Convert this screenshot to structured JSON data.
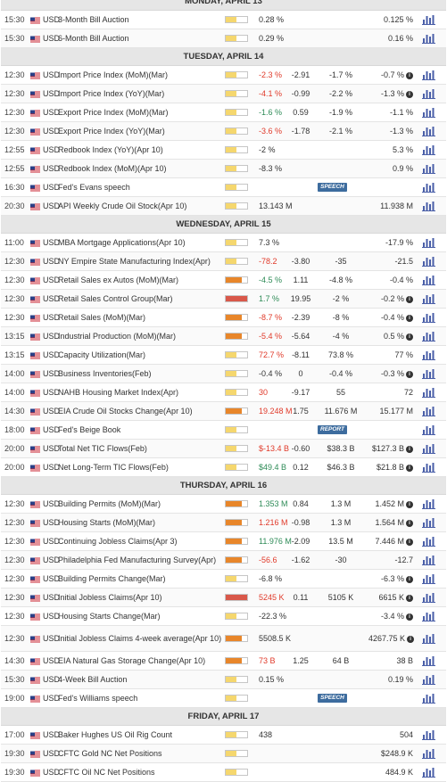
{
  "colors": {
    "low": "#f5d76e",
    "medium": "#e8862a",
    "high": "#d9584a",
    "positive": "#2e8b57",
    "negative": "#e03a2a",
    "badge": "#3d6c9e"
  },
  "icons": {
    "flag": "us-flag-icon",
    "chart": "bar-chart-icon",
    "info": "info-icon"
  },
  "days": [
    {
      "label": "MONDAY, APRIL 13",
      "events": [
        {
          "time": "15:30",
          "currency": "USD",
          "event": "3-Month Bill Auction",
          "impact": "low",
          "actual": "0.28 %",
          "tone": "neu",
          "deviation": "",
          "forecast": "",
          "previous": "0.125 %",
          "info": false,
          "badge": ""
        },
        {
          "time": "15:30",
          "currency": "USD",
          "event": "6-Month Bill Auction",
          "impact": "low",
          "actual": "0.29 %",
          "tone": "neu",
          "deviation": "",
          "forecast": "",
          "previous": "0.16 %",
          "info": false,
          "badge": ""
        }
      ]
    },
    {
      "label": "TUESDAY, APRIL 14",
      "events": [
        {
          "time": "12:30",
          "currency": "USD",
          "event": "Import Price Index (MoM)(Mar)",
          "impact": "low",
          "actual": "-2.3 %",
          "tone": "neg",
          "deviation": "-2.91",
          "forecast": "-1.7 %",
          "previous": "-0.7 %",
          "info": true,
          "badge": ""
        },
        {
          "time": "12:30",
          "currency": "USD",
          "event": "Import Price Index (YoY)(Mar)",
          "impact": "low",
          "actual": "-4.1 %",
          "tone": "neg",
          "deviation": "-0.99",
          "forecast": "-2.2 %",
          "previous": "-1.3 %",
          "info": true,
          "badge": ""
        },
        {
          "time": "12:30",
          "currency": "USD",
          "event": "Export Price Index (MoM)(Mar)",
          "impact": "low",
          "actual": "-1.6 %",
          "tone": "pos",
          "deviation": "0.59",
          "forecast": "-1.9 %",
          "previous": "-1.1 %",
          "info": false,
          "badge": ""
        },
        {
          "time": "12:30",
          "currency": "USD",
          "event": "Export Price Index (YoY)(Mar)",
          "impact": "low",
          "actual": "-3.6 %",
          "tone": "neg",
          "deviation": "-1.78",
          "forecast": "-2.1 %",
          "previous": "-1.3 %",
          "info": false,
          "badge": ""
        },
        {
          "time": "12:55",
          "currency": "USD",
          "event": "Redbook Index (YoY)(Apr 10)",
          "impact": "low",
          "actual": "-2 %",
          "tone": "neu",
          "deviation": "",
          "forecast": "",
          "previous": "5.3 %",
          "info": false,
          "badge": ""
        },
        {
          "time": "12:55",
          "currency": "USD",
          "event": "Redbook Index (MoM)(Apr 10)",
          "impact": "low",
          "actual": "-8.3 %",
          "tone": "neu",
          "deviation": "",
          "forecast": "",
          "previous": "0.9 %",
          "info": false,
          "badge": ""
        },
        {
          "time": "16:30",
          "currency": "USD",
          "event": "Fed's Evans speech",
          "impact": "low",
          "actual": "",
          "tone": "neu",
          "deviation": "",
          "forecast": "",
          "previous": "",
          "info": false,
          "badge": "SPEECH"
        },
        {
          "time": "20:30",
          "currency": "USD",
          "event": "API Weekly Crude Oil Stock(Apr 10)",
          "impact": "low",
          "actual": "13.143 M",
          "tone": "neu",
          "deviation": "",
          "forecast": "",
          "previous": "11.938 M",
          "info": false,
          "badge": ""
        }
      ]
    },
    {
      "label": "WEDNESDAY, APRIL 15",
      "events": [
        {
          "time": "11:00",
          "currency": "USD",
          "event": "MBA Mortgage Applications(Apr 10)",
          "impact": "low",
          "actual": "7.3 %",
          "tone": "neu",
          "deviation": "",
          "forecast": "",
          "previous": "-17.9 %",
          "info": false,
          "badge": ""
        },
        {
          "time": "12:30",
          "currency": "USD",
          "event": "NY Empire State Manufacturing Index(Apr)",
          "impact": "low",
          "actual": "-78.2",
          "tone": "neg",
          "deviation": "-3.80",
          "forecast": "-35",
          "previous": "-21.5",
          "info": false,
          "badge": ""
        },
        {
          "time": "12:30",
          "currency": "USD",
          "event": "Retail Sales ex Autos (MoM)(Mar)",
          "impact": "medium",
          "actual": "-4.5 %",
          "tone": "pos",
          "deviation": "1.11",
          "forecast": "-4.8 %",
          "previous": "-0.4 %",
          "info": false,
          "badge": ""
        },
        {
          "time": "12:30",
          "currency": "USD",
          "event": "Retail Sales Control Group(Mar)",
          "impact": "high",
          "actual": "1.7 %",
          "tone": "pos",
          "deviation": "19.95",
          "forecast": "-2 %",
          "previous": "-0.2 %",
          "info": true,
          "badge": ""
        },
        {
          "time": "12:30",
          "currency": "USD",
          "event": "Retail Sales (MoM)(Mar)",
          "impact": "medium",
          "actual": "-8.7 %",
          "tone": "neg",
          "deviation": "-2.39",
          "forecast": "-8 %",
          "previous": "-0.4 %",
          "info": true,
          "badge": ""
        },
        {
          "time": "13:15",
          "currency": "USD",
          "event": "Industrial Production (MoM)(Mar)",
          "impact": "medium",
          "actual": "-5.4 %",
          "tone": "neg",
          "deviation": "-5.64",
          "forecast": "-4 %",
          "previous": "0.5 %",
          "info": true,
          "badge": ""
        },
        {
          "time": "13:15",
          "currency": "USD",
          "event": "Capacity Utilization(Mar)",
          "impact": "low",
          "actual": "72.7 %",
          "tone": "neg",
          "deviation": "-8.11",
          "forecast": "73.8 %",
          "previous": "77 %",
          "info": false,
          "badge": ""
        },
        {
          "time": "14:00",
          "currency": "USD",
          "event": "Business Inventories(Feb)",
          "impact": "low",
          "actual": "-0.4 %",
          "tone": "neu",
          "deviation": "0",
          "forecast": "-0.4 %",
          "previous": "-0.3 %",
          "info": true,
          "badge": ""
        },
        {
          "time": "14:00",
          "currency": "USD",
          "event": "NAHB Housing Market Index(Apr)",
          "impact": "low",
          "actual": "30",
          "tone": "neg",
          "deviation": "-9.17",
          "forecast": "55",
          "previous": "72",
          "info": false,
          "badge": ""
        },
        {
          "time": "14:30",
          "currency": "USD",
          "event": "EIA Crude Oil Stocks Change(Apr 10)",
          "impact": "medium",
          "actual": "19.248 M",
          "tone": "neg",
          "deviation": "1.75",
          "forecast": "11.676 M",
          "previous": "15.177 M",
          "info": false,
          "badge": ""
        },
        {
          "time": "18:00",
          "currency": "USD",
          "event": "Fed's Beige Book",
          "impact": "low",
          "actual": "",
          "tone": "neu",
          "deviation": "",
          "forecast": "",
          "previous": "",
          "info": false,
          "badge": "REPORT"
        },
        {
          "time": "20:00",
          "currency": "USD",
          "event": "Total Net TIC Flows(Feb)",
          "impact": "low",
          "actual": "$-13.4 B",
          "tone": "neg",
          "deviation": "-0.60",
          "forecast": "$38.3 B",
          "previous": "$127.3 B",
          "info": true,
          "badge": ""
        },
        {
          "time": "20:00",
          "currency": "USD",
          "event": "Net Long-Term TIC Flows(Feb)",
          "impact": "low",
          "actual": "$49.4 B",
          "tone": "pos",
          "deviation": "0.12",
          "forecast": "$46.3 B",
          "previous": "$21.8 B",
          "info": true,
          "badge": ""
        }
      ]
    },
    {
      "label": "THURSDAY, APRIL 16",
      "events": [
        {
          "time": "12:30",
          "currency": "USD",
          "event": "Building Permits (MoM)(Mar)",
          "impact": "medium",
          "actual": "1.353 M",
          "tone": "pos",
          "deviation": "0.84",
          "forecast": "1.3 M",
          "previous": "1.452 M",
          "info": true,
          "badge": ""
        },
        {
          "time": "12:30",
          "currency": "USD",
          "event": "Housing Starts (MoM)(Mar)",
          "impact": "medium",
          "actual": "1.216 M",
          "tone": "neg",
          "deviation": "-0.98",
          "forecast": "1.3 M",
          "previous": "1.564 M",
          "info": true,
          "badge": ""
        },
        {
          "time": "12:30",
          "currency": "USD",
          "event": "Continuing Jobless Claims(Apr 3)",
          "impact": "medium",
          "actual": "11.976 M",
          "tone": "pos",
          "deviation": "-2.09",
          "forecast": "13.5 M",
          "previous": "7.446 M",
          "info": true,
          "badge": ""
        },
        {
          "time": "12:30",
          "currency": "USD",
          "event": "Philadelphia Fed Manufacturing Survey(Apr)",
          "impact": "medium",
          "actual": "-56.6",
          "tone": "neg",
          "deviation": "-1.62",
          "forecast": "-30",
          "previous": "-12.7",
          "info": false,
          "badge": ""
        },
        {
          "time": "12:30",
          "currency": "USD",
          "event": "Building Permits Change(Mar)",
          "impact": "low",
          "actual": "-6.8 %",
          "tone": "neu",
          "deviation": "",
          "forecast": "",
          "previous": "-6.3 %",
          "info": true,
          "badge": ""
        },
        {
          "time": "12:30",
          "currency": "USD",
          "event": "Initial Jobless Claims(Apr 10)",
          "impact": "high",
          "actual": "5245 K",
          "tone": "neg",
          "deviation": "0.11",
          "forecast": "5105 K",
          "previous": "6615 K",
          "info": true,
          "badge": ""
        },
        {
          "time": "12:30",
          "currency": "USD",
          "event": "Housing Starts Change(Mar)",
          "impact": "low",
          "actual": "-22.3 %",
          "tone": "neu",
          "deviation": "",
          "forecast": "",
          "previous": "-3.4 %",
          "info": true,
          "badge": ""
        },
        {
          "time": "12:30",
          "currency": "USD",
          "event": "Initial Jobless Claims 4-week average(Apr 10)",
          "impact": "medium",
          "actual": "5508.5 K",
          "tone": "neu",
          "deviation": "",
          "forecast": "",
          "previous": "4267.75 K",
          "info": true,
          "badge": "",
          "tall": true
        },
        {
          "time": "14:30",
          "currency": "USD",
          "event": "EIA Natural Gas Storage Change(Apr 10)",
          "impact": "medium",
          "actual": "73 B",
          "tone": "neg",
          "deviation": "1.25",
          "forecast": "64 B",
          "previous": "38 B",
          "info": false,
          "badge": ""
        },
        {
          "time": "15:30",
          "currency": "USD",
          "event": "4-Week Bill Auction",
          "impact": "low",
          "actual": "0.15 %",
          "tone": "neu",
          "deviation": "",
          "forecast": "",
          "previous": "0.19 %",
          "info": false,
          "badge": ""
        },
        {
          "time": "19:00",
          "currency": "USD",
          "event": "Fed's Williams speech",
          "impact": "low",
          "actual": "",
          "tone": "neu",
          "deviation": "",
          "forecast": "",
          "previous": "",
          "info": false,
          "badge": "SPEECH"
        }
      ]
    },
    {
      "label": "FRIDAY, APRIL 17",
      "events": [
        {
          "time": "17:00",
          "currency": "USD",
          "event": "Baker Hughes US Oil Rig Count",
          "impact": "low",
          "actual": "438",
          "tone": "neu",
          "deviation": "",
          "forecast": "",
          "previous": "504",
          "info": false,
          "badge": ""
        },
        {
          "time": "19:30",
          "currency": "USD",
          "event": "CFTC Gold NC Net Positions",
          "impact": "low",
          "actual": "",
          "tone": "neu",
          "deviation": "",
          "forecast": "",
          "previous": "$248.9 K",
          "info": false,
          "badge": ""
        },
        {
          "time": "19:30",
          "currency": "USD",
          "event": "CFTC Oil NC Net Positions",
          "impact": "low",
          "actual": "",
          "tone": "neu",
          "deviation": "",
          "forecast": "",
          "previous": "484.9 K",
          "info": false,
          "badge": ""
        }
      ]
    }
  ]
}
